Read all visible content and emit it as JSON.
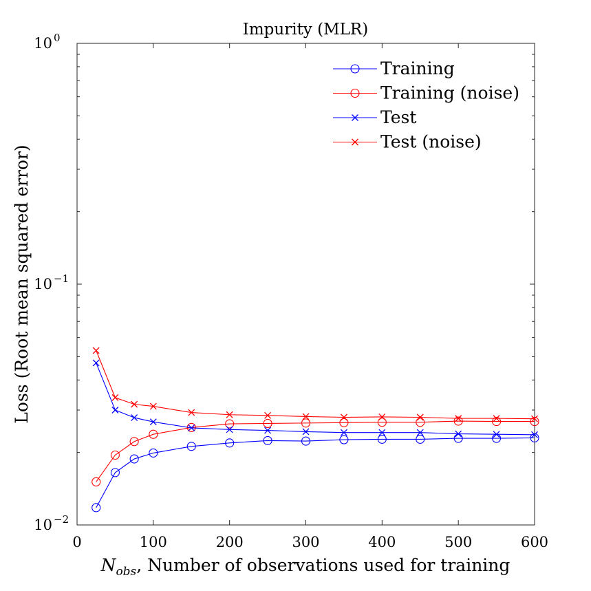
{
  "chart_data": {
    "type": "line",
    "title": "Impurity (MLR)",
    "xlabel_sym": "N",
    "xlabel_sub": "obs",
    "xlabel_rest": ", Number of observations used for training",
    "ylabel": "Loss (Root mean squared error)",
    "yscale": "log",
    "xlim": [
      0,
      600
    ],
    "ylim": [
      0.01,
      1
    ],
    "xticks": [
      0,
      100,
      200,
      300,
      400,
      500,
      600
    ],
    "yticks": [
      {
        "value": 1,
        "base": "10",
        "exp": "0"
      },
      {
        "value": 0.1,
        "base": "10",
        "exp": "−1"
      },
      {
        "value": 0.01,
        "base": "10",
        "exp": "−2"
      }
    ],
    "grid": false,
    "legend_position": "top-right",
    "x": [
      25,
      50,
      75,
      100,
      150,
      200,
      250,
      300,
      350,
      400,
      450,
      500,
      550,
      600
    ],
    "series": [
      {
        "name": "Training",
        "color": "#0000ff",
        "marker": "circle",
        "values": [
          0.0118,
          0.0165,
          0.0188,
          0.0199,
          0.0212,
          0.0219,
          0.0224,
          0.0223,
          0.0226,
          0.0227,
          0.0227,
          0.0229,
          0.0229,
          0.023
        ]
      },
      {
        "name": "Training (noise)",
        "color": "#ff0000",
        "marker": "circle",
        "values": [
          0.0151,
          0.0195,
          0.0222,
          0.0238,
          0.0254,
          0.0263,
          0.0264,
          0.0265,
          0.0266,
          0.0267,
          0.0267,
          0.027,
          0.0269,
          0.0269
        ]
      },
      {
        "name": "Test",
        "color": "#0000ff",
        "marker": "x",
        "values": [
          0.0471,
          0.03,
          0.0279,
          0.0268,
          0.0253,
          0.0249,
          0.0247,
          0.0244,
          0.0242,
          0.0242,
          0.0242,
          0.0239,
          0.0238,
          0.0237
        ]
      },
      {
        "name": "Test (noise)",
        "color": "#ff0000",
        "marker": "x",
        "values": [
          0.053,
          0.0338,
          0.0317,
          0.0311,
          0.0293,
          0.0287,
          0.0285,
          0.0282,
          0.028,
          0.0281,
          0.028,
          0.0277,
          0.0277,
          0.0276
        ]
      }
    ]
  }
}
